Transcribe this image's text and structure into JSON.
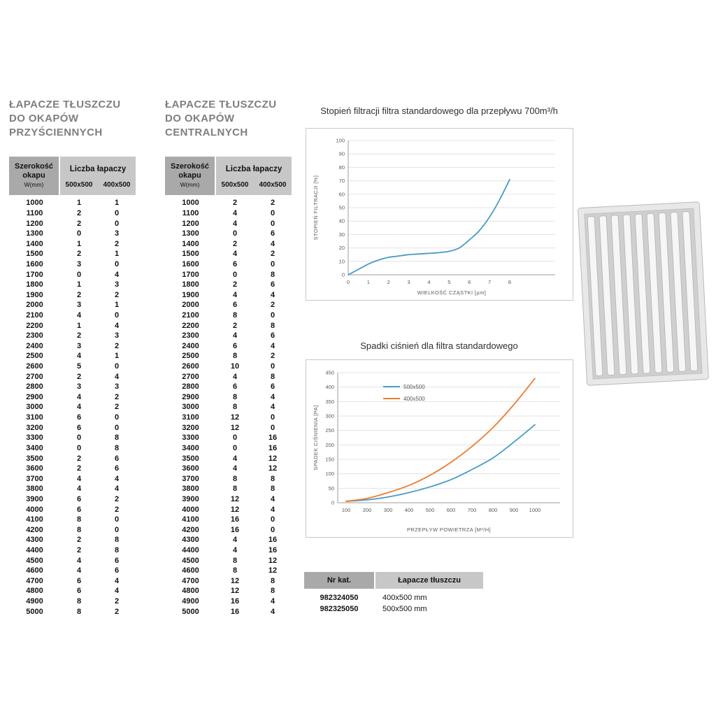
{
  "colors": {
    "title_gray": "#7f7f7f",
    "header_dark_gray": "#a9a9a9",
    "header_light_gray": "#c7c7c7",
    "series_blue": "#4a9bc6",
    "series_orange": "#ed7d31"
  },
  "left_table": {
    "title_lines": [
      "ŁAPACZE TŁUSZCZU",
      "DO OKAPÓW",
      "PRZYŚCIENNYCH"
    ],
    "header": {
      "width_label": "Szerokość okapu",
      "width_sub": "W(mm)",
      "count_label": "Liczba łapaczy",
      "size_cols": [
        "500x500",
        "400x500"
      ]
    },
    "rows": [
      [
        1000,
        1,
        1
      ],
      [
        1100,
        2,
        0
      ],
      [
        1200,
        2,
        0
      ],
      [
        1300,
        0,
        3
      ],
      [
        1400,
        1,
        2
      ],
      [
        1500,
        2,
        1
      ],
      [
        1600,
        3,
        0
      ],
      [
        1700,
        0,
        4
      ],
      [
        1800,
        1,
        3
      ],
      [
        1900,
        2,
        2
      ],
      [
        2000,
        3,
        1
      ],
      [
        2100,
        4,
        0
      ],
      [
        2200,
        1,
        4
      ],
      [
        2300,
        2,
        3
      ],
      [
        2400,
        3,
        2
      ],
      [
        2500,
        4,
        1
      ],
      [
        2600,
        5,
        0
      ],
      [
        2700,
        2,
        4
      ],
      [
        2800,
        3,
        3
      ],
      [
        2900,
        4,
        2
      ],
      [
        3000,
        4,
        2
      ],
      [
        3100,
        6,
        0
      ],
      [
        3200,
        6,
        0
      ],
      [
        3300,
        0,
        8
      ],
      [
        3400,
        0,
        8
      ],
      [
        3500,
        2,
        6
      ],
      [
        3600,
        2,
        6
      ],
      [
        3700,
        4,
        4
      ],
      [
        3800,
        4,
        4
      ],
      [
        3900,
        6,
        2
      ],
      [
        4000,
        6,
        2
      ],
      [
        4100,
        8,
        0
      ],
      [
        4200,
        8,
        0
      ],
      [
        4300,
        2,
        8
      ],
      [
        4400,
        2,
        8
      ],
      [
        4500,
        4,
        6
      ],
      [
        4600,
        4,
        6
      ],
      [
        4700,
        6,
        4
      ],
      [
        4800,
        6,
        4
      ],
      [
        4900,
        8,
        2
      ],
      [
        5000,
        8,
        2
      ]
    ]
  },
  "center_table": {
    "title_lines": [
      "ŁAPACZE TŁUSZCZU",
      "DO OKAPÓW",
      "CENTRALNYCH"
    ],
    "header": {
      "width_label": "Szerokość okapu",
      "width_sub": "W(mm)",
      "count_label": "Liczba łapaczy",
      "size_cols": [
        "500x500",
        "400x500"
      ]
    },
    "rows": [
      [
        1000,
        2,
        2
      ],
      [
        1100,
        4,
        0
      ],
      [
        1200,
        4,
        0
      ],
      [
        1300,
        0,
        6
      ],
      [
        1400,
        2,
        4
      ],
      [
        1500,
        4,
        2
      ],
      [
        1600,
        6,
        0
      ],
      [
        1700,
        0,
        8
      ],
      [
        1800,
        2,
        6
      ],
      [
        1900,
        4,
        4
      ],
      [
        2000,
        6,
        2
      ],
      [
        2100,
        8,
        0
      ],
      [
        2200,
        2,
        8
      ],
      [
        2300,
        4,
        6
      ],
      [
        2400,
        6,
        4
      ],
      [
        2500,
        8,
        2
      ],
      [
        2600,
        10,
        0
      ],
      [
        2700,
        4,
        8
      ],
      [
        2800,
        6,
        6
      ],
      [
        2900,
        8,
        4
      ],
      [
        3000,
        8,
        4
      ],
      [
        3100,
        12,
        0
      ],
      [
        3200,
        12,
        0
      ],
      [
        3300,
        0,
        16
      ],
      [
        3400,
        0,
        16
      ],
      [
        3500,
        4,
        12
      ],
      [
        3600,
        4,
        12
      ],
      [
        3700,
        8,
        8
      ],
      [
        3800,
        8,
        8
      ],
      [
        3900,
        12,
        4
      ],
      [
        4000,
        12,
        4
      ],
      [
        4100,
        16,
        0
      ],
      [
        4200,
        16,
        0
      ],
      [
        4300,
        4,
        16
      ],
      [
        4400,
        4,
        16
      ],
      [
        4500,
        8,
        12
      ],
      [
        4600,
        8,
        12
      ],
      [
        4700,
        12,
        8
      ],
      [
        4800,
        12,
        8
      ],
      [
        4900,
        16,
        4
      ],
      [
        5000,
        16,
        4
      ]
    ]
  },
  "chart_data": [
    {
      "type": "line",
      "title": "Stopień filtracji filtra standardowego dla przepływu 700m³/h",
      "xlabel": "WIELKOŚĆ CZĄSTKI [µm]",
      "ylabel": "STOPIEŃ FILTRACJI [%]",
      "xlim": [
        0,
        8
      ],
      "ylim": [
        0,
        100
      ],
      "xticks": [
        0,
        1,
        2,
        3,
        4,
        5,
        6,
        7,
        8
      ],
      "yticks": [
        0,
        10,
        20,
        30,
        40,
        50,
        60,
        70,
        80,
        90,
        100
      ],
      "legend": false,
      "series": [
        {
          "color": "#4a9bc6",
          "points": [
            [
              0,
              0
            ],
            [
              0.5,
              4
            ],
            [
              1,
              8
            ],
            [
              1.5,
              11
            ],
            [
              2,
              13
            ],
            [
              2.5,
              14
            ],
            [
              3,
              15
            ],
            [
              3.5,
              15.5
            ],
            [
              4,
              16
            ],
            [
              4.5,
              16.5
            ],
            [
              5,
              17.5
            ],
            [
              5.5,
              20
            ],
            [
              6,
              26
            ],
            [
              6.5,
              33
            ],
            [
              7,
              43
            ],
            [
              7.5,
              56
            ],
            [
              8,
              71
            ]
          ]
        }
      ]
    },
    {
      "type": "line",
      "title": "Spadki ciśnień dla filtra standardowego",
      "xlabel": "PRZEPŁYW POWIETRZA [M³/H]",
      "ylabel": "SPADEK CIŚNIENIA [PA]",
      "xlim": [
        100,
        1000
      ],
      "ylim": [
        0,
        450
      ],
      "x": [
        100,
        200,
        300,
        400,
        500,
        600,
        700,
        800,
        900,
        1000
      ],
      "xticks": [
        100,
        200,
        300,
        400,
        500,
        600,
        700,
        800,
        900,
        1000
      ],
      "yticks": [
        0,
        50,
        100,
        150,
        200,
        250,
        300,
        350,
        400,
        450
      ],
      "legend": true,
      "series": [
        {
          "name": "500x500",
          "color": "#4a9bc6",
          "values": [
            5,
            10,
            20,
            35,
            55,
            80,
            115,
            155,
            210,
            270
          ]
        },
        {
          "name": "400x500",
          "color": "#ed7d31",
          "values": [
            5,
            15,
            35,
            60,
            95,
            140,
            195,
            260,
            340,
            430
          ]
        }
      ]
    }
  ],
  "catalog_table": {
    "headers": [
      "Nr kat.",
      "Łapacze tłuszczu"
    ],
    "rows": [
      [
        "982324050",
        "400x500 mm"
      ],
      [
        "982325050",
        "500x500 mm"
      ]
    ]
  }
}
